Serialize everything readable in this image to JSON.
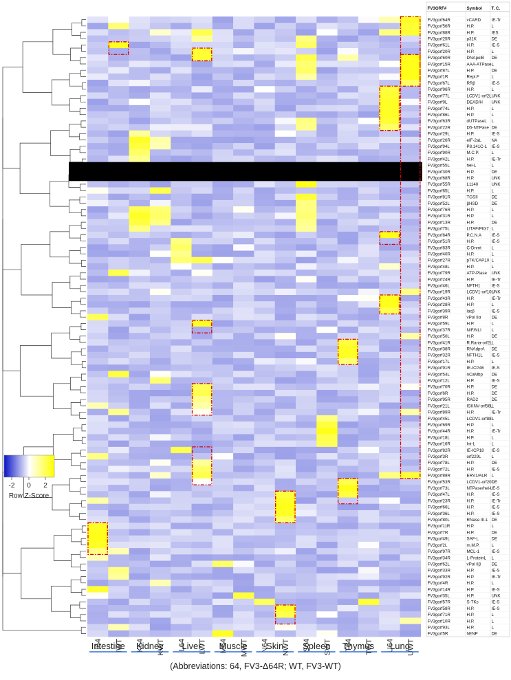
{
  "chart_data": {
    "type": "heatmap",
    "columns": [
      "I64",
      "IWT",
      "K64",
      "KWT",
      "L64",
      "LWT",
      "M64",
      "MWT",
      "N64",
      "NWT",
      "S64",
      "SWT",
      "T64",
      "TWT",
      "U64",
      "UWT"
    ],
    "tissues": [
      "Intestine",
      "Kidney",
      "Liver",
      "Muscle",
      "Skin",
      "Spleen",
      "Thymus",
      "Lung"
    ],
    "color_key": {
      "title": "Row Z-Score",
      "ticks": [
        "-2",
        "0",
        "2"
      ],
      "low": "#0a14c8",
      "mid": "#ffffff",
      "high": "#ffff00"
    },
    "table_headers": [
      "FV3ORF#",
      "Symbol",
      "T. C."
    ],
    "rows": [
      [
        "FV3gorf64R",
        "vCARD",
        "IE-Tr"
      ],
      [
        "FV3gorf56R",
        "H.P.",
        "L"
      ],
      [
        "FV3gorf88R",
        "H.P.",
        "IES"
      ],
      [
        "FV3gorf25R",
        "p31K",
        "DE"
      ],
      [
        "FV3gorf61L",
        "H.P.",
        "IE-S"
      ],
      [
        "FV3gorf20R",
        "H.P.",
        "L"
      ],
      [
        "FV3gorf60R",
        "DNApolB",
        "DE"
      ],
      [
        "FV3gorf15R",
        "AAA-ATPase",
        "L"
      ],
      [
        "FV3gorf87L",
        "H.P.",
        "DE"
      ],
      [
        "FV3gorf1R",
        "Repl.F",
        "L"
      ],
      [
        "FV3gorf67L",
        "RRβ",
        "IE-S"
      ],
      [
        "FV3gorf96R",
        "H.P.",
        "L"
      ],
      [
        "FV3gorf77L",
        "LCDV1-orf2L",
        "UNK"
      ],
      [
        "FV3gorf9L",
        "DEAD/H",
        "UNK"
      ],
      [
        "FV3gorf74L",
        "H.P.",
        "L"
      ],
      [
        "FV3gorf86L",
        "H.P.",
        "L"
      ],
      [
        "FV3gorf63R",
        "dUTPaseL",
        "L"
      ],
      [
        "FV3gorf22R",
        "D5-NTPase",
        "DE"
      ],
      [
        "FV3gorf29L",
        "H.P.",
        "IE-S"
      ],
      [
        "FV3gorf26R",
        "eIF-2aL",
        "NA"
      ],
      [
        "FV3gorf94L",
        "P8.141C-L",
        "IE-S"
      ],
      [
        "FV3gorf90R",
        "M.C.P.",
        "L"
      ],
      [
        "FV3gorf42L",
        "H.P.",
        "IE-Tr"
      ],
      [
        "FV3gorf55L",
        "hel-L",
        "L"
      ],
      [
        "FV3gorf30R",
        "H.P.",
        "DE"
      ],
      [
        "FV3gorf68R",
        "H.P.",
        "UNK"
      ],
      [
        "FV3gorf55R",
        "L1140",
        "UNK"
      ],
      [
        "FV3gorf65L",
        "H.P.",
        "L"
      ],
      [
        "FV3gorf81R",
        "TGSII",
        "DE"
      ],
      [
        "FV3gorf52L",
        "βHSD",
        "DE"
      ],
      [
        "FV3gorf76R",
        "H.P.",
        "L"
      ],
      [
        "FV3gorf31R",
        "H.P.",
        "L"
      ],
      [
        "FV3gorf13R",
        "H.P.",
        "DE"
      ],
      [
        "FV3gorf75L",
        "LITAF/PIG7",
        "L"
      ],
      [
        "FV3gorf84R",
        "P.C.N.A",
        "IE-S"
      ],
      [
        "FV3gorf51R",
        "H.P.",
        "IE-S"
      ],
      [
        "FV3gorf83R",
        "C-Dnmt",
        "L"
      ],
      [
        "FV3gorf40R",
        "H.P.",
        "L"
      ],
      [
        "FV3gorf27R",
        "pTK/CAP10",
        "L"
      ],
      [
        "FV3gorf48L",
        "H.P.",
        "L"
      ],
      [
        "FV3gorf79R",
        "ATP-Ptase",
        "UNK"
      ],
      [
        "FV3gorf24R",
        "H.P.",
        "IE-Tr"
      ],
      [
        "FV3gorf46L",
        "NFTH1",
        "IE-S"
      ],
      [
        "FV3gorf19R",
        "LCDV1-orf10L",
        "UNK"
      ],
      [
        "FV3gorf43R",
        "H.P.",
        "IE-Tr"
      ],
      [
        "FV3gorf28R",
        "H.P.",
        "L"
      ],
      [
        "FV3gorf39R",
        "lacβ",
        "IE-S"
      ],
      [
        "FV3gorf8R",
        "vPol IIα",
        "DE"
      ],
      [
        "FV3gorf59L",
        "H.P.",
        "L"
      ],
      [
        "FV3gorf37R",
        "NIF/NLI",
        "L"
      ],
      [
        "FV3gorf50L",
        "H.P.",
        "DE"
      ],
      [
        "FV3gorf41R",
        "R.Rana-orf2L",
        "L"
      ],
      [
        "FV3gorf38R",
        "RNAdprA",
        "DE"
      ],
      [
        "FV3gorf32R",
        "NFTH1L",
        "IE-S"
      ],
      [
        "FV3gorf17L",
        "H.P.",
        "L"
      ],
      [
        "FV3gorf91R",
        "IE-ICP46",
        "IE-S"
      ],
      [
        "FV3gorf54L",
        "nCaMbp",
        "DE"
      ],
      [
        "FV3gorf12L",
        "H.P.",
        "IE-S"
      ],
      [
        "FV3gorf70R",
        "H.P.",
        "DE"
      ],
      [
        "FV3gorf6R",
        "H.P.",
        "DE"
      ],
      [
        "FV3gorf95R",
        "RAD2",
        "DE"
      ],
      [
        "FV3gorf21L",
        "ISKNV-orf56L",
        "L"
      ],
      [
        "FV3gorf89R",
        "H.P.",
        "IE-Tr"
      ],
      [
        "FV3gorf45L",
        "LCDV1-orf88L",
        "L"
      ],
      [
        "FV3gorf69R",
        "H.P.",
        "L"
      ],
      [
        "FV3gorf44R",
        "H.P.",
        "IE-Tr"
      ],
      [
        "FV3gorf18L",
        "H.P.",
        "L"
      ],
      [
        "FV3gorf16R",
        "Int-L",
        "L"
      ],
      [
        "FV3gorf82R",
        "IE-ICP18",
        "IE-S"
      ],
      [
        "FV3gorf3R",
        "orf229L",
        "L"
      ],
      [
        "FV3gorf78L",
        "H.P.",
        "DE"
      ],
      [
        "FV3gorf72L",
        "H.P.",
        "IE-S"
      ],
      [
        "FV3gorf88R",
        "ERV1/ALR",
        "L"
      ],
      [
        "FV3gorf53R",
        "LCDV1-orf20L",
        "DE"
      ],
      [
        "FV3gorf73L",
        "NTPase/hel-L",
        "IE-S"
      ],
      [
        "FV3gorf47L",
        "H.P.",
        "IE-S"
      ],
      [
        "FV3gorf23R",
        "H.P.",
        "IE-Tr"
      ],
      [
        "FV3gorf66L",
        "H.P.",
        "IE-S"
      ],
      [
        "FV3gorf36L",
        "H.P.",
        "IE-S"
      ],
      [
        "FV3gorf80L",
        "RNase III-L",
        "DE"
      ],
      [
        "FV3gorf11R",
        "H.P.",
        "L"
      ],
      [
        "FV3gorf7R",
        "H.P.",
        "DE"
      ],
      [
        "FV3gorf49L",
        "SAF-L",
        "DE"
      ],
      [
        "FV3gorf2L",
        "m.M.P.",
        "L"
      ],
      [
        "FV3gorf97R",
        "MCL-1",
        "IE-S"
      ],
      [
        "FV3gorf34R",
        "L-ProteinL",
        "L"
      ],
      [
        "FV3gorf62L",
        "vPol IIβ",
        "DE"
      ],
      [
        "FV3gorf33R",
        "H.P.",
        "IE-S"
      ],
      [
        "FV3gorf92R",
        "H.P.",
        "IE-Tr"
      ],
      [
        "FV3gorf4R",
        "H.P.",
        "L"
      ],
      [
        "FV3gorf14R",
        "H.P.",
        "IE-S"
      ],
      [
        "FV3gorf35L",
        "H.P.",
        "UNK"
      ],
      [
        "FV3gorf57R",
        "S-TKc",
        "IE-S"
      ],
      [
        "FV3gorf58R",
        "H.P.",
        "IE-S"
      ],
      [
        "FV3gorf71R",
        "H.P.",
        "L"
      ],
      [
        "FV3gorf10R",
        "H.P.",
        "L"
      ],
      [
        "FV3gorf93L",
        "H.P.",
        "L"
      ],
      [
        "FV3gorf5R",
        "hENP",
        "DE"
      ]
    ],
    "highlights": [
      {
        "column": "UWT",
        "genes": [
          "FV3gorf64R",
          "FV3gorf56R",
          "FV3gorf88R"
        ]
      },
      {
        "column": "IWT",
        "genes": [
          "FV3gorf61L",
          "FV3gorf20R"
        ]
      },
      {
        "column": "LWT",
        "genes": [
          "FV3gorf20R",
          "FV3gorf60R"
        ]
      },
      {
        "column": "UWT",
        "genes": [
          "FV3gorf60R",
          "FV3gorf15R",
          "FV3gorf87L",
          "FV3gorf1R",
          "FV3gorf67L"
        ]
      },
      {
        "column": "U64",
        "genes": [
          "FV3gorf96R",
          "FV3gorf77L",
          "FV3gorf9L",
          "FV3gorf74L",
          "FV3gorf86L",
          "FV3gorf63R",
          "FV3gorf22R"
        ]
      },
      {
        "column": "U64",
        "genes": [
          "FV3gorf84R",
          "FV3gorf51R"
        ]
      },
      {
        "column": "U64",
        "genes": [
          "FV3gorf43R",
          "FV3gorf28R",
          "FV3gorf39R"
        ]
      },
      {
        "column": "LWT",
        "genes": [
          "FV3gorf59L",
          "FV3gorf37R"
        ]
      },
      {
        "column": "T64",
        "genes": [
          "FV3gorf41R",
          "FV3gorf38R",
          "FV3gorf32R",
          "FV3gorf17L"
        ]
      },
      {
        "column": "LWT",
        "genes": [
          "FV3gorf70R",
          "FV3gorf6R",
          "FV3gorf95R",
          "FV3gorf21L",
          "FV3gorf89R"
        ]
      },
      {
        "column": "LWT",
        "genes": [
          "FV3gorf82R",
          "FV3gorf3R",
          "FV3gorf78L",
          "FV3gorf72L",
          "FV3gorf88R",
          "FV3gorf53R"
        ]
      },
      {
        "column": "T64",
        "genes": [
          "FV3gorf53R",
          "FV3gorf73L",
          "FV3gorf47L",
          "FV3gorf23R"
        ]
      },
      {
        "column": "NWT",
        "genes": [
          "FV3gorf47L",
          "FV3gorf23R",
          "FV3gorf66L",
          "FV3gorf36L",
          "FV3gorf80L"
        ]
      },
      {
        "column": "I64",
        "genes": [
          "FV3gorf11R",
          "FV3gorf7R",
          "FV3gorf49L",
          "FV3gorf2L",
          "FV3gorf97R"
        ]
      },
      {
        "column": "NWT",
        "genes": [
          "FV3gorf58R",
          "FV3gorf71R",
          "FV3gorf10R"
        ]
      }
    ],
    "hot_cells": [
      [
        "FV3gorf56R",
        "IWT",
        0.55
      ],
      [
        "FV3gorf88R",
        "KWT",
        0.2
      ],
      [
        "FV3gorf25R",
        "LWT",
        0.4
      ],
      [
        "FV3gorf25R",
        "S64",
        0.5
      ],
      [
        "FV3gorf61L",
        "IWT",
        0.85
      ],
      [
        "FV3gorf61L",
        "S64",
        0.6
      ],
      [
        "FV3gorf20R",
        "LWT",
        0.8
      ],
      [
        "FV3gorf60R",
        "LWT",
        0.8
      ],
      [
        "FV3gorf60R",
        "T64",
        0.35
      ],
      [
        "FV3gorf60R",
        "S64",
        0.7
      ],
      [
        "FV3gorf15R",
        "S64",
        0.55
      ],
      [
        "FV3gorf87L",
        "S64",
        0.6
      ],
      [
        "FV3gorf1R",
        "S64",
        0.35
      ],
      [
        "FV3gorf64R",
        "UWT",
        0.85
      ],
      [
        "FV3gorf64R",
        "U64",
        0.3
      ],
      [
        "FV3gorf56R",
        "UWT",
        0.8
      ],
      [
        "FV3gorf88R",
        "UWT",
        0.8
      ],
      [
        "FV3gorf88R",
        "U64",
        0.5
      ],
      [
        "FV3gorf60R",
        "UWT",
        0.9
      ],
      [
        "FV3gorf15R",
        "UWT",
        0.9
      ],
      [
        "FV3gorf87L",
        "UWT",
        0.9
      ],
      [
        "FV3gorf1R",
        "UWT",
        0.9
      ],
      [
        "FV3gorf67L",
        "UWT",
        0.6
      ],
      [
        "FV3gorf96R",
        "U64",
        0.75
      ],
      [
        "FV3gorf77L",
        "U64",
        0.8
      ],
      [
        "FV3gorf9L",
        "U64",
        0.85
      ],
      [
        "FV3gorf74L",
        "U64",
        0.85
      ],
      [
        "FV3gorf86L",
        "U64",
        0.85
      ],
      [
        "FV3gorf63R",
        "U64",
        0.8
      ],
      [
        "FV3gorf22R",
        "U64",
        0.6
      ],
      [
        "FV3gorf63R",
        "S64",
        0.5
      ],
      [
        "FV3gorf22R",
        "S64",
        0.45
      ],
      [
        "FV3gorf29L",
        "K64",
        0.4
      ],
      [
        "FV3gorf26R",
        "K64",
        0.85
      ],
      [
        "FV3gorf94L",
        "K64",
        0.75
      ],
      [
        "FV3gorf90R",
        "K64",
        0.6
      ],
      [
        "FV3gorf42L",
        "K64",
        0.45
      ],
      [
        "FV3gorf26R",
        "KWT",
        0.35
      ],
      [
        "FV3gorf94L",
        "KWT",
        0.3
      ],
      [
        "FV3gorf30R",
        "S64",
        0.3
      ],
      [
        "FV3gorf68R",
        "S64",
        0.6
      ],
      [
        "FV3gorf55R",
        "S64",
        0.9
      ],
      [
        "FV3gorf65L",
        "KWT",
        0.7
      ],
      [
        "FV3gorf81R",
        "S64",
        0.75
      ],
      [
        "FV3gorf52L",
        "S64",
        0.5
      ],
      [
        "FV3gorf76R",
        "K64",
        0.7
      ],
      [
        "FV3gorf31R",
        "K64",
        0.85
      ],
      [
        "FV3gorf13R",
        "K64",
        0.75
      ],
      [
        "FV3gorf75L",
        "K64",
        0.5
      ],
      [
        "FV3gorf76R",
        "KWT",
        0.55
      ],
      [
        "FV3gorf31R",
        "KWT",
        0.6
      ],
      [
        "FV3gorf13R",
        "KWT",
        0.5
      ],
      [
        "FV3gorf76R",
        "S64",
        0.5
      ],
      [
        "FV3gorf31R",
        "S64",
        0.55
      ],
      [
        "FV3gorf13R",
        "S64",
        0.45
      ],
      [
        "FV3gorf75L",
        "S64",
        0.4
      ],
      [
        "FV3gorf84R",
        "U64",
        0.9
      ],
      [
        "FV3gorf51R",
        "L64",
        0.5
      ],
      [
        "FV3gorf83R",
        "L64",
        0.6
      ],
      [
        "FV3gorf40R",
        "L64",
        0.45
      ],
      [
        "FV3gorf27R",
        "LWT",
        0.7
      ],
      [
        "FV3gorf27R",
        "L64",
        0.55
      ],
      [
        "FV3gorf48L",
        "U64",
        0.2
      ],
      [
        "FV3gorf79R",
        "IWT",
        0.7
      ],
      [
        "FV3gorf19R",
        "UWT",
        0.5
      ],
      [
        "FV3gorf43R",
        "U64",
        0.9
      ],
      [
        "FV3gorf28R",
        "U64",
        0.9
      ],
      [
        "FV3gorf39R",
        "U64",
        0.7
      ],
      [
        "FV3gorf8R",
        "I64",
        0.65
      ],
      [
        "FV3gorf59L",
        "LWT",
        0.85
      ],
      [
        "FV3gorf50L",
        "UWT",
        0.35
      ],
      [
        "FV3gorf41R",
        "T64",
        0.75
      ],
      [
        "FV3gorf38R",
        "T64",
        0.85
      ],
      [
        "FV3gorf32R",
        "T64",
        0.85
      ],
      [
        "FV3gorf17L",
        "T64",
        0.55
      ],
      [
        "FV3gorf54L",
        "IWT",
        0.75
      ],
      [
        "FV3gorf12L",
        "KWT",
        0.55
      ],
      [
        "FV3gorf70R",
        "LWT",
        0.65
      ],
      [
        "FV3gorf6R",
        "LWT",
        0.7
      ],
      [
        "FV3gorf95R",
        "LWT",
        0.45
      ],
      [
        "FV3gorf21L",
        "LWT",
        0.35
      ],
      [
        "FV3gorf89R",
        "IWT",
        0.45
      ],
      [
        "FV3gorf21L",
        "I64",
        0.3
      ],
      [
        "FV3gorf89R",
        "UWT",
        0.35
      ],
      [
        "FV3gorf69R",
        "SWT",
        0.75
      ],
      [
        "FV3gorf44R",
        "SWT",
        0.9
      ],
      [
        "FV3gorf18L",
        "SWT",
        0.7
      ],
      [
        "FV3gorf16R",
        "SWT",
        0.65
      ],
      [
        "FV3gorf45L",
        "SWT",
        0.5
      ],
      [
        "FV3gorf82R",
        "L64",
        0.7
      ],
      [
        "FV3gorf3R",
        "I64",
        0.5
      ],
      [
        "FV3gorf78L",
        "LWT",
        0.4
      ],
      [
        "FV3gorf72L",
        "LWT",
        0.6
      ],
      [
        "FV3gorf88R",
        "LWT",
        0.7
      ],
      [
        "FV3gorf53R",
        "T64",
        0.7
      ],
      [
        "FV3gorf73L",
        "T64",
        0.9
      ],
      [
        "FV3gorf47L",
        "T64",
        0.75
      ],
      [
        "FV3gorf23R",
        "I64",
        0.35
      ],
      [
        "FV3gorf47L",
        "NWT",
        0.75
      ],
      [
        "FV3gorf23R",
        "NWT",
        0.85
      ],
      [
        "FV3gorf66L",
        "NWT",
        0.9
      ],
      [
        "FV3gorf36L",
        "NWT",
        0.85
      ],
      [
        "FV3gorf80L",
        "NWT",
        0.6
      ],
      [
        "FV3gorf11R",
        "I64",
        0.85
      ],
      [
        "FV3gorf7R",
        "I64",
        0.9
      ],
      [
        "FV3gorf49L",
        "I64",
        0.9
      ],
      [
        "FV3gorf2L",
        "I64",
        0.85
      ],
      [
        "FV3gorf97R",
        "I64",
        0.5
      ],
      [
        "FV3gorf97R",
        "IWT",
        0.3
      ],
      [
        "FV3gorf62L",
        "M64",
        0.6
      ],
      [
        "FV3gorf33R",
        "IWT",
        0.5
      ],
      [
        "FV3gorf92R",
        "IWT",
        0.4
      ],
      [
        "FV3gorf14R",
        "I64",
        0.8
      ],
      [
        "FV3gorf35L",
        "MWT",
        0.75
      ],
      [
        "FV3gorf57R",
        "N64",
        0.65
      ],
      [
        "FV3gorf57R",
        "TWT",
        0.8
      ],
      [
        "FV3gorf58R",
        "NWT",
        0.85
      ],
      [
        "FV3gorf71R",
        "NWT",
        0.7
      ],
      [
        "FV3gorf10R",
        "UWT",
        0.35
      ],
      [
        "FV3gorf93L",
        "IWT",
        0.3
      ],
      [
        "FV3gorf5R",
        "M64",
        0.85
      ],
      [
        "FV3gorf34R",
        "I64",
        0.3
      ],
      [
        "FV3gorf4R",
        "KWT",
        0.3
      ]
    ],
    "masked_rows": [
      "FV3gorf55L",
      "FV3gorf30R",
      "FV3gorf68R"
    ],
    "caption": "(Abbreviations: 64, FV3-Δ64R; WT,  FV3-WT)"
  }
}
